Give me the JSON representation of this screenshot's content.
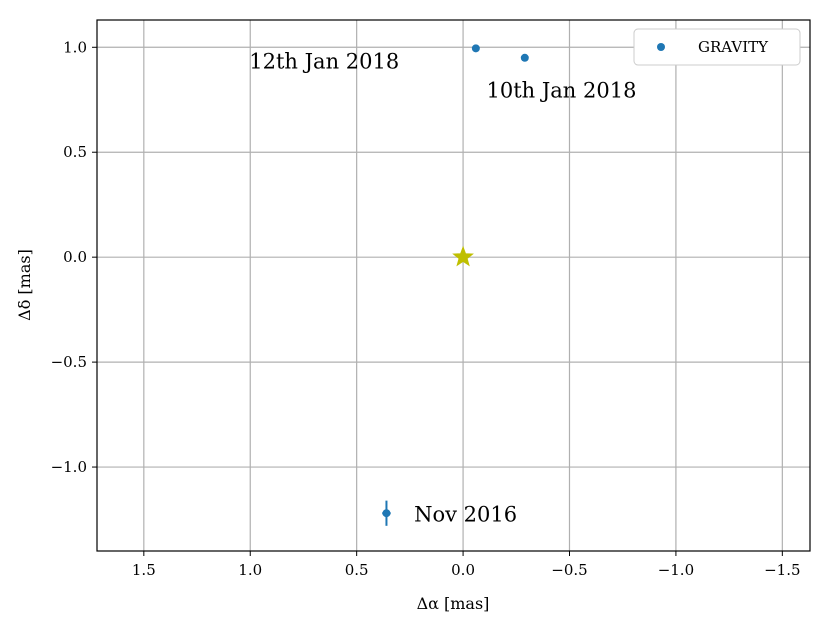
{
  "chart_data": {
    "type": "scatter",
    "xlabel": "Δα [mas]",
    "ylabel": "Δδ [mas]",
    "xlim": [
      1.72,
      -1.63
    ],
    "ylim": [
      -1.4,
      1.13
    ],
    "x_inverted": true,
    "xticks": [
      1.5,
      1.0,
      0.5,
      0.0,
      -0.5,
      -1.0,
      -1.5
    ],
    "xtick_labels": [
      "1.5",
      "1.0",
      "0.5",
      "0.0",
      "−0.5",
      "−1.0",
      "−1.5"
    ],
    "yticks": [
      1.0,
      0.5,
      0.0,
      -0.5,
      -1.0
    ],
    "ytick_labels": [
      "1.0",
      "0.5",
      "0.0",
      "−0.5",
      "−1.0"
    ],
    "grid": true,
    "legend_position": "top-right",
    "series": [
      {
        "name": "GRAVITY",
        "color": "#1f77b4",
        "marker": "circle",
        "points": [
          {
            "x": -0.06,
            "y": 0.995
          },
          {
            "x": -0.29,
            "y": 0.95
          },
          {
            "x": 0.36,
            "y": -1.22,
            "xerr": 0.02,
            "yerr": 0.06
          }
        ]
      }
    ],
    "reference": {
      "x": 0.0,
      "y": 0.0,
      "marker": "star",
      "color": "#bfbf00"
    },
    "annotations": [
      {
        "text": "12th Jan 2018",
        "x": 0.3,
        "y": 0.9,
        "anchor": "end"
      },
      {
        "text": "10th Jan 2018",
        "x": -0.11,
        "y": 0.76,
        "anchor": "start"
      },
      {
        "text": "Nov 2016",
        "x": 0.23,
        "y": -1.26,
        "anchor": "start"
      }
    ]
  }
}
